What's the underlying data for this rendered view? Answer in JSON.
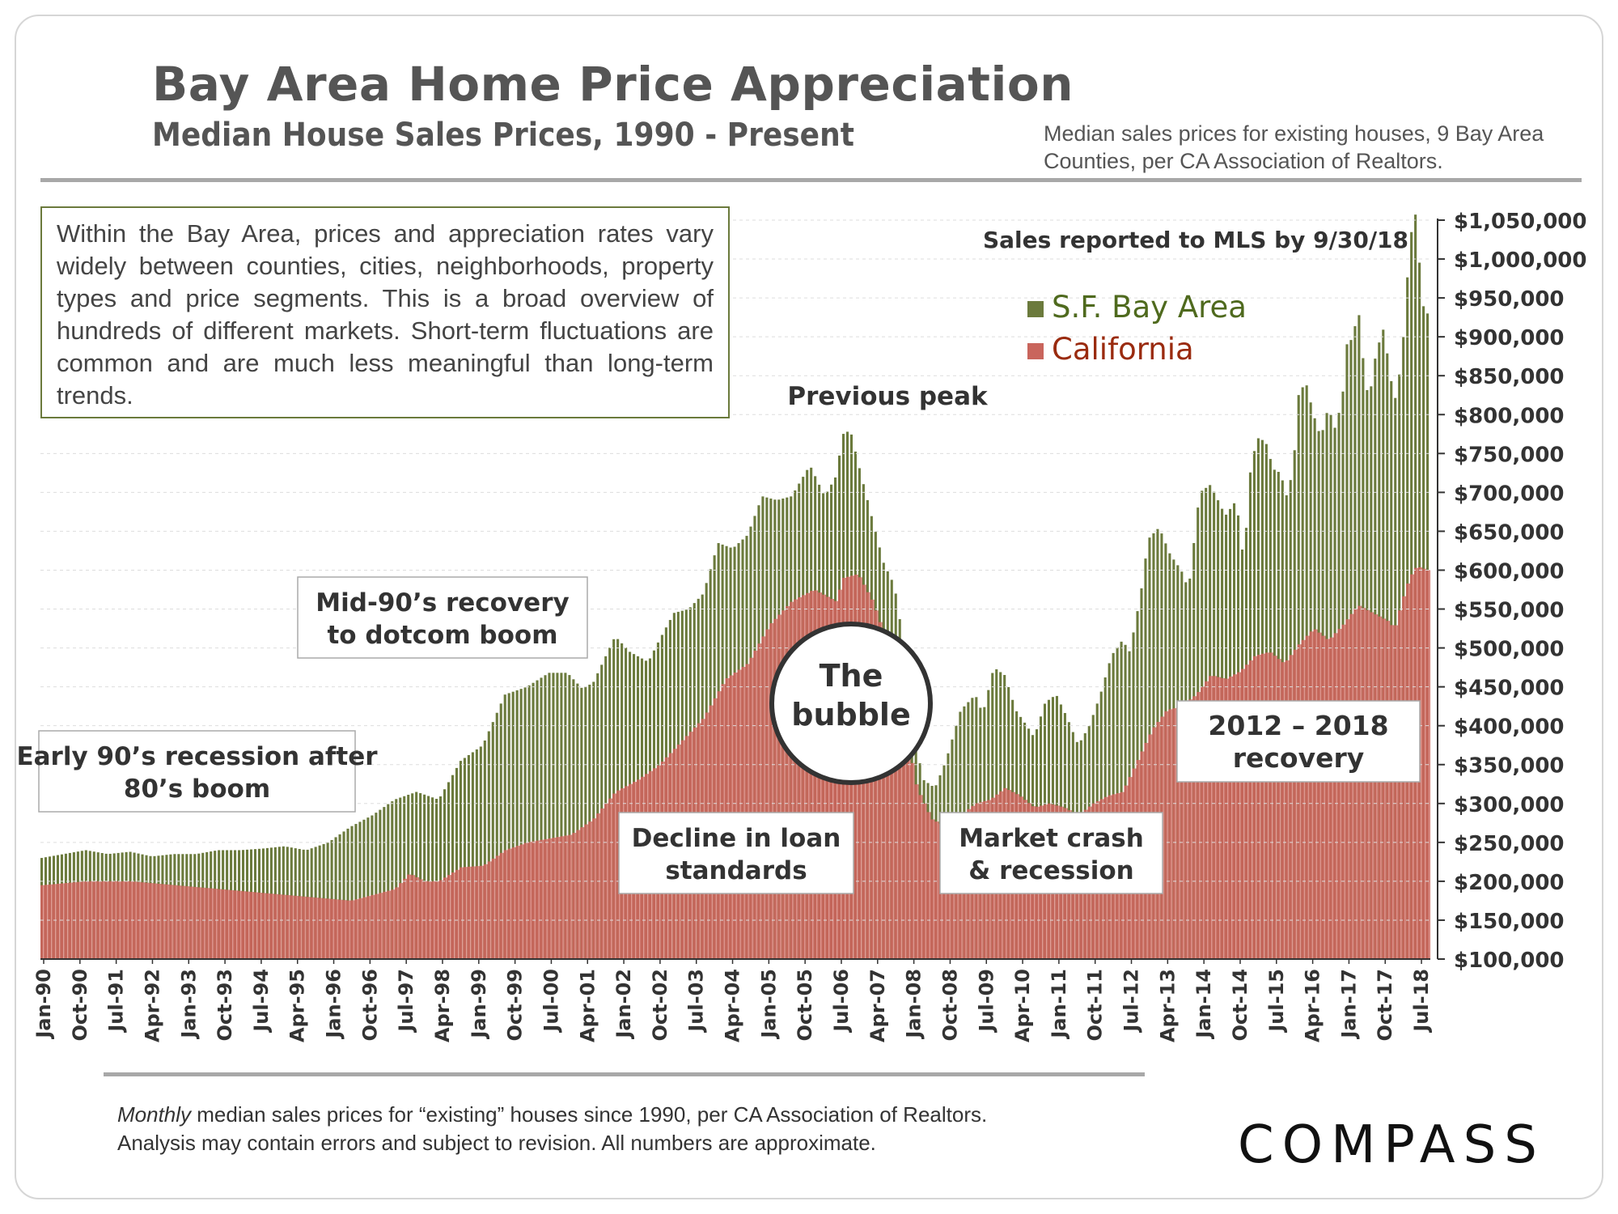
{
  "header": {
    "title": "Bay Area Home Price Appreciation",
    "subtitle": "Median House Sales Prices, 1990 - Present",
    "source_note": "Median sales prices for existing houses, 9 Bay Area Counties, per CA Association of Realtors."
  },
  "intro_text": "Within the Bay Area, prices and appreciation rates vary widely between counties, cities, neighborhoods, property types and price segments. This is a broad overview of hundreds of different markets. Short-term fluctuations are common and are much less meaningful than long-term trends.",
  "footer": {
    "note_italic": "Monthly",
    "note_rest": " median sales prices for “existing” houses since 1990, per CA Association of Realtors.",
    "note_line2": "Analysis may contain errors and subject to revision. All numbers are approximate.",
    "logo": "COMPASS"
  },
  "colors": {
    "bay": "#6b7a3c",
    "ca": "#c9655c",
    "bg_bar": "#f3ede9"
  },
  "chart_data": {
    "type": "bar",
    "title": "Median House Sales Prices, 1990 - Present",
    "ylim": [
      100000,
      1050000
    ],
    "y_ticks": [
      100000,
      150000,
      200000,
      250000,
      300000,
      350000,
      400000,
      450000,
      500000,
      550000,
      600000,
      650000,
      700000,
      750000,
      800000,
      850000,
      900000,
      950000,
      1000000,
      1050000
    ],
    "y_tick_labels": [
      "$100,000",
      "$150,000",
      "$200,000",
      "$250,000",
      "$300,000",
      "$350,000",
      "$400,000",
      "$450,000",
      "$500,000",
      "$550,000",
      "$600,000",
      "$650,000",
      "$700,000",
      "$750,000",
      "$800,000",
      "$850,000",
      "$900,000",
      "$950,000",
      "$1,000,000",
      "$1,050,000"
    ],
    "x_start": "Jan-90",
    "x_end": "Sep-18",
    "x_tick_labels": [
      "Jan-90",
      "Oct-90",
      "Jul-91",
      "Apr-92",
      "Jan-93",
      "Oct-93",
      "Jul-94",
      "Apr-95",
      "Jan-96",
      "Oct-96",
      "Jul-97",
      "Apr-98",
      "Jan-99",
      "Oct-99",
      "Jul-00",
      "Apr-01",
      "Jan-02",
      "Oct-02",
      "Jul-03",
      "Apr-04",
      "Jan-05",
      "Oct-05",
      "Jul-06",
      "Apr-07",
      "Jan-08",
      "Oct-08",
      "Jul-09",
      "Apr-10",
      "Jan-11",
      "Oct-11",
      "Jul-12",
      "Apr-13",
      "Jan-14",
      "Oct-14",
      "Jul-15",
      "Apr-16",
      "Jan-17",
      "Oct-17",
      "Jul-18"
    ],
    "legend": [
      {
        "name": "S.F. Bay Area",
        "color": "#6b7a3c"
      },
      {
        "name": "California",
        "color": "#c9655c"
      }
    ],
    "sales_note": "Sales reported to MLS by 9/30/18",
    "series": [
      {
        "name": "S.F. Bay Area",
        "anchors": [
          [
            0,
            230000
          ],
          [
            6,
            235000
          ],
          [
            12,
            240000
          ],
          [
            18,
            235000
          ],
          [
            24,
            238000
          ],
          [
            30,
            232000
          ],
          [
            36,
            235000
          ],
          [
            42,
            235000
          ],
          [
            48,
            240000
          ],
          [
            54,
            240000
          ],
          [
            60,
            242000
          ],
          [
            66,
            245000
          ],
          [
            72,
            240000
          ],
          [
            78,
            250000
          ],
          [
            84,
            270000
          ],
          [
            90,
            285000
          ],
          [
            96,
            305000
          ],
          [
            102,
            315000
          ],
          [
            108,
            305000
          ],
          [
            114,
            355000
          ],
          [
            120,
            375000
          ],
          [
            126,
            440000
          ],
          [
            132,
            450000
          ],
          [
            138,
            468000
          ],
          [
            143,
            468000
          ],
          [
            147,
            448000
          ],
          [
            150,
            455000
          ],
          [
            156,
            515000
          ],
          [
            160,
            495000
          ],
          [
            165,
            482000
          ],
          [
            168,
            510000
          ],
          [
            172,
            545000
          ],
          [
            176,
            550000
          ],
          [
            180,
            570000
          ],
          [
            184,
            635000
          ],
          [
            188,
            628000
          ],
          [
            192,
            645000
          ],
          [
            196,
            695000
          ],
          [
            200,
            690000
          ],
          [
            204,
            695000
          ],
          [
            209,
            735000
          ],
          [
            213,
            695000
          ],
          [
            216,
            720000
          ],
          [
            218,
            775000
          ],
          [
            220,
            780000
          ],
          [
            222,
            740000
          ],
          [
            226,
            665000
          ],
          [
            229,
            610000
          ],
          [
            232,
            580000
          ],
          [
            234,
            520000
          ],
          [
            236,
            430000
          ],
          [
            238,
            370000
          ],
          [
            240,
            330000
          ],
          [
            243,
            320000
          ],
          [
            246,
            355000
          ],
          [
            250,
            420000
          ],
          [
            254,
            440000
          ],
          [
            256,
            415000
          ],
          [
            259,
            475000
          ],
          [
            262,
            465000
          ],
          [
            265,
            420000
          ],
          [
            268,
            400000
          ],
          [
            270,
            385000
          ],
          [
            273,
            430000
          ],
          [
            276,
            440000
          ],
          [
            279,
            410000
          ],
          [
            282,
            375000
          ],
          [
            285,
            400000
          ],
          [
            288,
            440000
          ],
          [
            291,
            490000
          ],
          [
            294,
            510000
          ],
          [
            296,
            495000
          ],
          [
            299,
            570000
          ],
          [
            301,
            640000
          ],
          [
            304,
            655000
          ],
          [
            307,
            620000
          ],
          [
            310,
            600000
          ],
          [
            312,
            575000
          ],
          [
            315,
            700000
          ],
          [
            318,
            710000
          ],
          [
            320,
            690000
          ],
          [
            322,
            670000
          ],
          [
            325,
            690000
          ],
          [
            327,
            610000
          ],
          [
            329,
            740000
          ],
          [
            331,
            770000
          ],
          [
            333,
            765000
          ],
          [
            335,
            730000
          ],
          [
            337,
            725000
          ],
          [
            339,
            690000
          ],
          [
            341,
            760000
          ],
          [
            342,
            830000
          ],
          [
            344,
            840000
          ],
          [
            346,
            800000
          ],
          [
            348,
            770000
          ],
          [
            350,
            810000
          ],
          [
            352,
            780000
          ],
          [
            354,
            830000
          ],
          [
            355,
            890000
          ],
          [
            357,
            900000
          ],
          [
            358,
            950000
          ],
          [
            359,
            890000
          ],
          [
            361,
            815000
          ],
          [
            363,
            880000
          ],
          [
            365,
            910000
          ],
          [
            366,
            880000
          ],
          [
            368,
            815000
          ],
          [
            370,
            870000
          ],
          [
            372,
            1010000
          ],
          [
            373,
            1050000
          ],
          [
            374,
            1060000
          ],
          [
            375,
            980000
          ],
          [
            376,
            935000
          ],
          [
            377,
            930000
          ]
        ]
      },
      {
        "name": "California",
        "anchors": [
          [
            0,
            195000
          ],
          [
            12,
            200000
          ],
          [
            24,
            200000
          ],
          [
            36,
            195000
          ],
          [
            48,
            190000
          ],
          [
            60,
            185000
          ],
          [
            72,
            180000
          ],
          [
            84,
            175000
          ],
          [
            96,
            190000
          ],
          [
            100,
            210000
          ],
          [
            104,
            200000
          ],
          [
            108,
            200000
          ],
          [
            114,
            218000
          ],
          [
            120,
            220000
          ],
          [
            126,
            240000
          ],
          [
            132,
            250000
          ],
          [
            138,
            255000
          ],
          [
            144,
            260000
          ],
          [
            150,
            280000
          ],
          [
            156,
            315000
          ],
          [
            162,
            330000
          ],
          [
            168,
            350000
          ],
          [
            174,
            380000
          ],
          [
            180,
            410000
          ],
          [
            186,
            460000
          ],
          [
            192,
            480000
          ],
          [
            198,
            530000
          ],
          [
            204,
            560000
          ],
          [
            210,
            575000
          ],
          [
            216,
            560000
          ],
          [
            218,
            590000
          ],
          [
            222,
            595000
          ],
          [
            226,
            560000
          ],
          [
            230,
            505000
          ],
          [
            234,
            420000
          ],
          [
            238,
            320000
          ],
          [
            242,
            280000
          ],
          [
            246,
            270000
          ],
          [
            250,
            285000
          ],
          [
            254,
            300000
          ],
          [
            258,
            305000
          ],
          [
            262,
            320000
          ],
          [
            266,
            310000
          ],
          [
            270,
            295000
          ],
          [
            274,
            300000
          ],
          [
            278,
            295000
          ],
          [
            282,
            285000
          ],
          [
            286,
            300000
          ],
          [
            290,
            310000
          ],
          [
            294,
            315000
          ],
          [
            298,
            355000
          ],
          [
            302,
            395000
          ],
          [
            306,
            420000
          ],
          [
            310,
            425000
          ],
          [
            314,
            440000
          ],
          [
            318,
            465000
          ],
          [
            322,
            460000
          ],
          [
            326,
            470000
          ],
          [
            330,
            490000
          ],
          [
            334,
            495000
          ],
          [
            338,
            480000
          ],
          [
            342,
            505000
          ],
          [
            346,
            525000
          ],
          [
            350,
            510000
          ],
          [
            354,
            530000
          ],
          [
            358,
            555000
          ],
          [
            362,
            545000
          ],
          [
            366,
            535000
          ],
          [
            368,
            525000
          ],
          [
            370,
            560000
          ],
          [
            372,
            590000
          ],
          [
            374,
            605000
          ],
          [
            377,
            600000
          ]
        ]
      }
    ],
    "annotations": [
      {
        "key": "early90",
        "lines": [
          "Early 90’s recession after",
          "80’s boom"
        ]
      },
      {
        "key": "mid90",
        "lines": [
          "Mid-90’s recovery",
          "to dotcom boom"
        ]
      },
      {
        "key": "decline",
        "lines": [
          "Decline in loan",
          "standards"
        ]
      },
      {
        "key": "bubble",
        "lines": [
          "The",
          "bubble"
        ]
      },
      {
        "key": "peak",
        "lines": [
          "Previous peak"
        ]
      },
      {
        "key": "crash",
        "lines": [
          "Market crash",
          "& recession"
        ]
      },
      {
        "key": "recovery",
        "lines": [
          "2012 – 2018",
          "recovery"
        ]
      }
    ]
  }
}
